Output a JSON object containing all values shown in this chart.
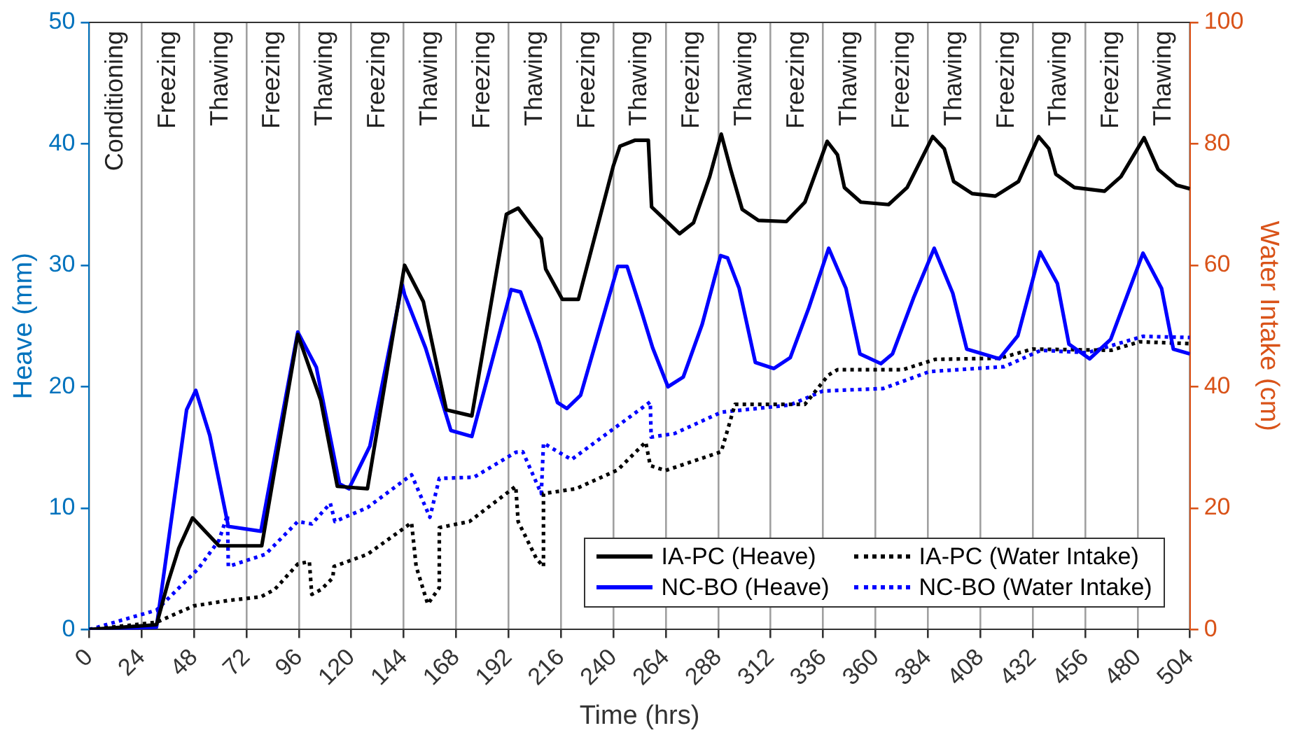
{
  "chart_data": {
    "type": "line",
    "xlabel": "Time (hrs)",
    "ylabel": "Heave (mm)",
    "y2label": "Water Intake (cm)",
    "xlim": [
      0,
      504
    ],
    "xticks": [
      0,
      24,
      48,
      72,
      96,
      120,
      144,
      168,
      192,
      216,
      240,
      264,
      288,
      312,
      336,
      360,
      384,
      408,
      432,
      456,
      480,
      504
    ],
    "ylim": [
      0,
      50
    ],
    "yticks": [
      0,
      10,
      20,
      30,
      40,
      50
    ],
    "y2lim": [
      0,
      100
    ],
    "y2ticks": [
      0,
      20,
      40,
      60,
      80,
      100
    ],
    "grid": "x",
    "legend": "bottom right",
    "marker": "none",
    "annotations": [
      "Conditioning",
      "Freezing",
      "Thawing",
      "Freezing",
      "Thawing",
      "Freezing",
      "Thawing",
      "Freezing",
      "Thawing",
      "Freezing",
      "Thawing",
      "Freezing",
      "Thawing",
      "Freezing",
      "Thawing",
      "Freezing",
      "Thawing",
      "Freezing",
      "Thawing",
      "Freezing",
      "Thawing"
    ],
    "series": [
      {
        "name": "IA-PC (Heave)",
        "color": "#000000",
        "line_style": "solid",
        "x": [
          0,
          30.8,
          36.1,
          41,
          47.3,
          59.4,
          79,
          95.5,
          106,
          113.6,
          127.4,
          144.4,
          153,
          163.5,
          175.2,
          191,
          196.4,
          207,
          209,
          216.6,
          224,
          240,
          243,
          250,
          256,
          257.5,
          270.3,
          276.7,
          284.1,
          289.4,
          293.7,
          299,
          306.4,
          319.2,
          327.7,
          337.9,
          342.6,
          345.8,
          353.3,
          366,
          374.5,
          386.2,
          391.5,
          395.8,
          404.3,
          414.9,
          425.5,
          434.7,
          439.4,
          442.6,
          451.1,
          464.9,
          472.4,
          483,
          489.4,
          497.9,
          504
        ],
        "values": [
          0,
          0.4,
          3.9,
          6.7,
          9.2,
          6.9,
          6.9,
          24.3,
          18.9,
          11.8,
          11.6,
          30,
          27,
          18.1,
          17.6,
          34.2,
          34.7,
          32.2,
          29.7,
          27.2,
          27.2,
          38.2,
          39.8,
          40.3,
          40.3,
          34.8,
          32.6,
          33.5,
          37.3,
          40.8,
          37.9,
          34.6,
          33.7,
          33.6,
          35.2,
          40.2,
          39.1,
          36.4,
          35.2,
          35,
          36.4,
          40.6,
          39.6,
          36.9,
          35.9,
          35.7,
          36.9,
          40.6,
          39.6,
          37.5,
          36.4,
          36.1,
          37.3,
          40.5,
          37.9,
          36.6,
          36.3
        ]
      },
      {
        "name": "NC-BO (Heave)",
        "color": "#0000ff",
        "line_style": "solid",
        "x": [
          0,
          30.8,
          44.6,
          48.8,
          55.2,
          63.7,
          78.6,
          95.5,
          104,
          114.6,
          118.9,
          128.5,
          143.3,
          144.4,
          154,
          165.6,
          175.2,
          193.2,
          197.5,
          206,
          214.4,
          218.7,
          225,
          242,
          246.3,
          252.7,
          258,
          265,
          272,
          280.6,
          289.1,
          292.3,
          297.6,
          305,
          313.5,
          321,
          329.5,
          338.6,
          346.5,
          352.9,
          362.5,
          367.8,
          377.4,
          386.9,
          395.4,
          401.8,
          416.7,
          425.2,
          435.4,
          443.3,
          448.6,
          458.1,
          467.7,
          482.5,
          491,
          496.4,
          504
        ],
        "values": [
          0,
          0.2,
          18.1,
          19.7,
          16,
          8.5,
          8.1,
          24.5,
          21.6,
          12,
          11.6,
          15.1,
          28.4,
          27.6,
          23.2,
          16.4,
          15.9,
          28,
          27.8,
          23.6,
          18.7,
          18.2,
          19.3,
          29.9,
          29.9,
          26.3,
          23.2,
          20,
          20.8,
          25.1,
          30.8,
          30.6,
          28.1,
          22,
          21.5,
          22.4,
          26.5,
          31.4,
          28.1,
          22.7,
          21.9,
          22.7,
          27.3,
          31.4,
          27.7,
          23.1,
          22.3,
          24.2,
          31.1,
          28.5,
          23.5,
          22.3,
          23.9,
          31,
          28.1,
          23.1,
          22.7
        ]
      },
      {
        "name": "IA-PC (Water Intake)",
        "color": "#000000",
        "line_style": "dotted",
        "axis": "y2",
        "x": [
          0,
          30.8,
          47.8,
          63.7,
          78.6,
          84.9,
          95.5,
          100.8,
          101.9,
          106.2,
          111.5,
          112.1,
          127.4,
          147.6,
          149.7,
          155,
          160.3,
          160.3,
          174.1,
          195.3,
          196.4,
          204.9,
          208,
          208,
          222.9,
          242,
          254.8,
          256.9,
          263.9,
          289.4,
          295.7,
          327.7,
          338.4,
          342.6,
          372.4,
          387.3,
          417,
          431.9,
          468,
          480.8,
          504
        ],
        "values": [
          0,
          1.2,
          3.9,
          4.8,
          5.4,
          6.6,
          10.8,
          11.2,
          5.8,
          6.6,
          8.5,
          10.4,
          12.4,
          17.6,
          10.4,
          4.2,
          6.9,
          16.8,
          17.8,
          23.6,
          17.8,
          11.6,
          10.4,
          22.4,
          23.2,
          26.3,
          30.9,
          27,
          26.2,
          29.3,
          37.1,
          37.1,
          41.9,
          42.8,
          42.8,
          44.5,
          44.7,
          46.2,
          46,
          47.4,
          47.1
        ]
      },
      {
        "name": "NC-BO (Water Intake)",
        "color": "#0000ff",
        "line_style": "dotted",
        "axis": "y2",
        "x": [
          0,
          30.8,
          49.9,
          59.4,
          63.3,
          63.7,
          80.7,
          95.5,
          101.9,
          110.4,
          112.5,
          127.4,
          147.6,
          156,
          160.3,
          176.2,
          195.3,
          198.5,
          207,
          208,
          220.8,
          246.3,
          256.9,
          257.3,
          268.1,
          289.4,
          300,
          321,
          335.9,
          363.5,
          384.8,
          418.9,
          435.8,
          457,
          482.5,
          504
        ],
        "values": [
          0,
          3.2,
          10,
          14.7,
          18.9,
          10.4,
          12.4,
          17.8,
          17.4,
          20.8,
          17.8,
          20.1,
          25.5,
          18.5,
          24.9,
          25.1,
          29.2,
          29.3,
          22.4,
          30.7,
          28,
          34.7,
          37.5,
          31.7,
          32.3,
          35.8,
          36.2,
          37,
          39.3,
          39.7,
          42.5,
          43.3,
          46,
          45.6,
          48.3,
          48.1
        ]
      }
    ]
  }
}
